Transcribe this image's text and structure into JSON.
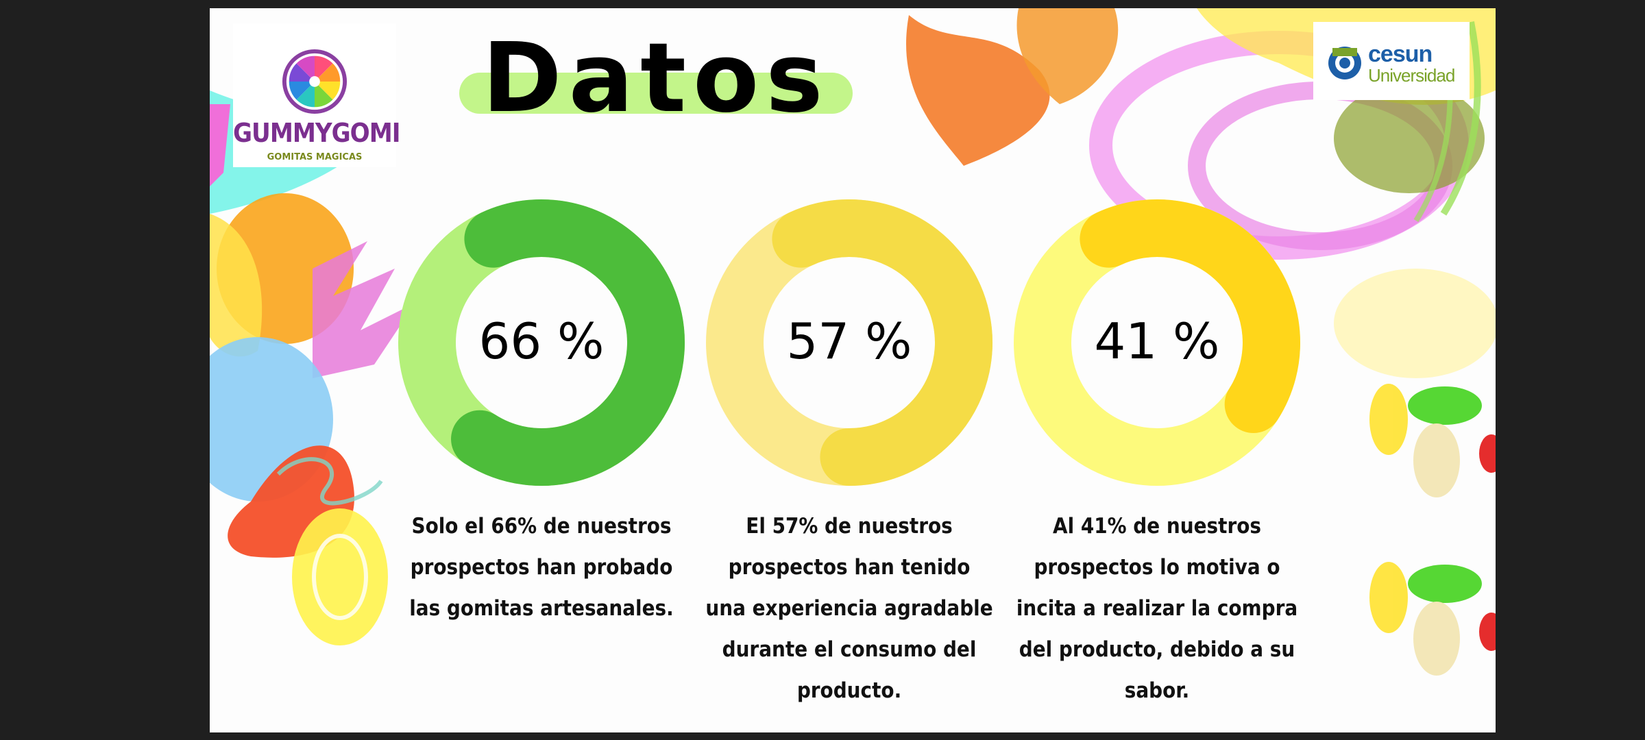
{
  "slide": {
    "title": "Datos",
    "title_highlight_color": "#c3f58a"
  },
  "logo_left": {
    "name": "GUMMYGOMI",
    "tagline": "GOMITAS MAGICAS",
    "icon": "citrus-wheel-logo",
    "color": "#7b2f8f"
  },
  "logo_right": {
    "name": "cesun",
    "subtitle": "Universidad",
    "icon": "cesun-emblem",
    "primary_color": "#1d5fa8",
    "secondary_color": "#7aa32a"
  },
  "chart_data": [
    {
      "type": "pie",
      "variant": "donut",
      "value": 66,
      "center_label": "66 %",
      "caption": "Solo el 66% de nuestros prospectos han probado las gomitas artesanales.",
      "fill_color": "#4dbd3a",
      "track_color": "#b4f07a"
    },
    {
      "type": "pie",
      "variant": "donut",
      "value": 57,
      "center_label": "57 %",
      "caption": "El 57% de nuestros prospectos han tenido una experiencia agradable durante el consumo del producto.",
      "fill_color": "#f5dc46",
      "track_color": "#fbe98c"
    },
    {
      "type": "pie",
      "variant": "donut",
      "value": 41,
      "center_label": "41 %",
      "caption": "Al 41% de nuestros prospectos lo motiva o incita a realizar la compra del producto, debido a su sabor.",
      "fill_color": "#ffd61a",
      "track_color": "#fdfa7c"
    }
  ]
}
